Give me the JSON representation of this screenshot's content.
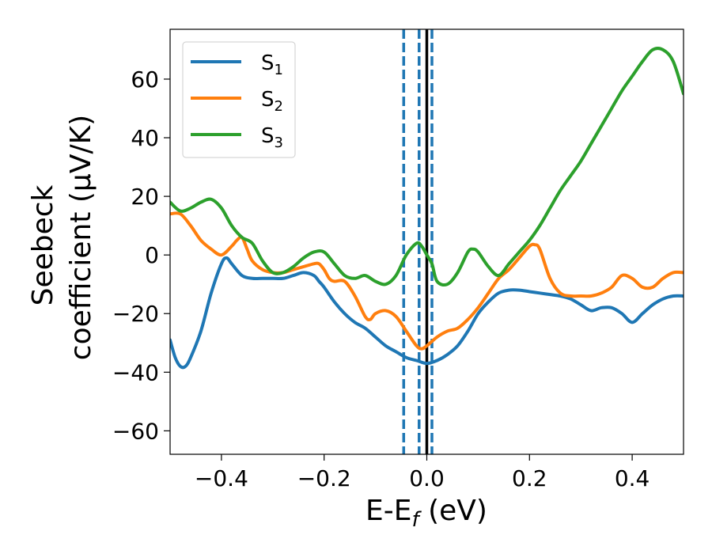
{
  "chart_data": {
    "type": "line",
    "xlabel": "E-E",
    "xlabel_sub": "f",
    "xlabel_unit": " (eV)",
    "ylabel_line1": "Seebeck",
    "ylabel_line2": "coefficient  (μV/K)",
    "xlim": [
      -0.5,
      0.5
    ],
    "ylim": [
      -68,
      77
    ],
    "xticks": [
      -0.4,
      -0.2,
      0.0,
      0.2,
      0.4
    ],
    "xtick_labels": [
      "−0.4",
      "−0.2",
      "0.0",
      "0.2",
      "0.4"
    ],
    "yticks": [
      -60,
      -40,
      -20,
      0,
      20,
      40,
      60
    ],
    "ytick_labels": [
      "−60",
      "−40",
      "−20",
      "0",
      "20",
      "40",
      "60"
    ],
    "legend_position": "top-left",
    "grid": false,
    "vertical_lines": [
      {
        "x": -0.045,
        "style": "dashed",
        "color": "#1f77b4"
      },
      {
        "x": -0.015,
        "style": "dashed",
        "color": "#1f77b4"
      },
      {
        "x": 0.01,
        "style": "dashed",
        "color": "#1f77b4"
      },
      {
        "x": 0.0,
        "style": "solid",
        "color": "#000000"
      }
    ],
    "series": [
      {
        "name": "S",
        "name_sub": "1",
        "color": "#1f77b4",
        "x": [
          -0.5,
          -0.49,
          -0.48,
          -0.47,
          -0.46,
          -0.44,
          -0.42,
          -0.4,
          -0.39,
          -0.38,
          -0.36,
          -0.34,
          -0.32,
          -0.3,
          -0.28,
          -0.26,
          -0.24,
          -0.22,
          -0.21,
          -0.2,
          -0.18,
          -0.16,
          -0.14,
          -0.12,
          -0.1,
          -0.08,
          -0.06,
          -0.04,
          -0.02,
          0.0,
          0.02,
          0.04,
          0.06,
          0.08,
          0.1,
          0.12,
          0.14,
          0.16,
          0.18,
          0.2,
          0.22,
          0.24,
          0.26,
          0.28,
          0.3,
          0.32,
          0.34,
          0.36,
          0.38,
          0.4,
          0.42,
          0.44,
          0.46,
          0.48,
          0.5
        ],
        "y": [
          -29,
          -35,
          -38,
          -38,
          -35,
          -26,
          -13,
          -3,
          -1,
          -3,
          -7,
          -8,
          -8,
          -8,
          -8,
          -7,
          -6,
          -7,
          -9,
          -11,
          -16,
          -20,
          -23,
          -25,
          -28,
          -31,
          -33,
          -35,
          -36,
          -37,
          -36,
          -34,
          -31,
          -26,
          -20,
          -16,
          -13,
          -12,
          -12,
          -12.5,
          -13,
          -13.5,
          -14,
          -15,
          -17,
          -19,
          -18,
          -18,
          -20,
          -23,
          -20,
          -17,
          -15,
          -14,
          -14
        ]
      },
      {
        "name": "S",
        "name_sub": "2",
        "color": "#ff7f0e",
        "x": [
          -0.5,
          -0.48,
          -0.46,
          -0.44,
          -0.42,
          -0.4,
          -0.38,
          -0.37,
          -0.36,
          -0.35,
          -0.34,
          -0.32,
          -0.3,
          -0.28,
          -0.26,
          -0.24,
          -0.22,
          -0.21,
          -0.2,
          -0.19,
          -0.18,
          -0.16,
          -0.14,
          -0.12,
          -0.11,
          -0.1,
          -0.08,
          -0.06,
          -0.04,
          -0.02,
          -0.01,
          0.0,
          0.02,
          0.04,
          0.06,
          0.08,
          0.1,
          0.12,
          0.14,
          0.16,
          0.18,
          0.2,
          0.21,
          0.22,
          0.24,
          0.26,
          0.28,
          0.3,
          0.32,
          0.34,
          0.36,
          0.38,
          0.4,
          0.42,
          0.44,
          0.46,
          0.48,
          0.5
        ],
        "y": [
          14,
          14,
          10,
          5,
          2,
          0,
          3,
          5,
          6,
          2,
          -2,
          -5,
          -6,
          -6,
          -5,
          -4,
          -3,
          -3,
          -5,
          -8,
          -9,
          -9,
          -14,
          -21,
          -22,
          -20,
          -19,
          -21,
          -26,
          -31,
          -32,
          -31,
          -28,
          -26,
          -25,
          -22,
          -18,
          -13,
          -8,
          -5,
          -1,
          3,
          3.5,
          2,
          -8,
          -13,
          -14,
          -14,
          -14,
          -13,
          -11,
          -7,
          -8,
          -11,
          -11,
          -8,
          -6,
          -6
        ]
      },
      {
        "name": "S",
        "name_sub": "3",
        "color": "#2ca02c",
        "x": [
          -0.5,
          -0.48,
          -0.46,
          -0.44,
          -0.42,
          -0.4,
          -0.38,
          -0.36,
          -0.34,
          -0.32,
          -0.3,
          -0.28,
          -0.26,
          -0.24,
          -0.22,
          -0.2,
          -0.18,
          -0.16,
          -0.14,
          -0.12,
          -0.1,
          -0.08,
          -0.06,
          -0.04,
          -0.02,
          -0.01,
          0.0,
          0.01,
          0.02,
          0.04,
          0.06,
          0.08,
          0.09,
          0.1,
          0.12,
          0.14,
          0.16,
          0.18,
          0.2,
          0.22,
          0.24,
          0.26,
          0.28,
          0.3,
          0.32,
          0.34,
          0.36,
          0.38,
          0.4,
          0.42,
          0.44,
          0.46,
          0.48,
          0.5
        ],
        "y": [
          18,
          15,
          16,
          18,
          19,
          16,
          10,
          6,
          4,
          -2,
          -6,
          -6,
          -4,
          -1,
          1,
          1,
          -3,
          -7,
          -8,
          -7,
          -9,
          -10,
          -7,
          0,
          4,
          3,
          0,
          -3,
          -9,
          -10,
          -6,
          1,
          2,
          1,
          -4,
          -7,
          -3,
          1,
          5,
          10,
          16,
          22,
          27,
          32,
          38,
          44,
          50,
          56,
          61,
          66,
          70,
          70,
          66,
          55
        ]
      }
    ]
  }
}
